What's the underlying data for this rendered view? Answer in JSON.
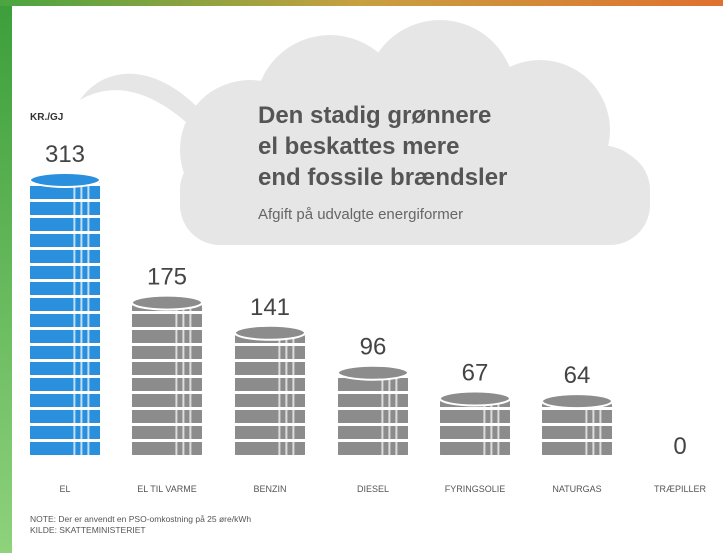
{
  "chart_data": {
    "type": "bar",
    "title": [
      "Den stadig grønnere",
      "el beskattes mere",
      "end fossile brændsler"
    ],
    "subtitle": "Afgift på udvalgte energiformer",
    "unit": "KR./GJ",
    "categories": [
      "EL",
      "EL TIL VARME",
      "BENZIN",
      "DIESEL",
      "FYRINGSOLIE",
      "NATURGAS",
      "TRÆPILLER"
    ],
    "values": [
      313,
      175,
      141,
      96,
      67,
      64,
      0
    ],
    "colors": [
      "#2a8fdd",
      "#8c8c8c",
      "#8c8c8c",
      "#8c8c8c",
      "#8c8c8c",
      "#8c8c8c",
      "#8c8c8c"
    ],
    "note": "NOTE: Der er anvendt en PSO-omkostning på 25 øre/kWh",
    "source": "KILDE: SKATTEMINISTERIET"
  }
}
